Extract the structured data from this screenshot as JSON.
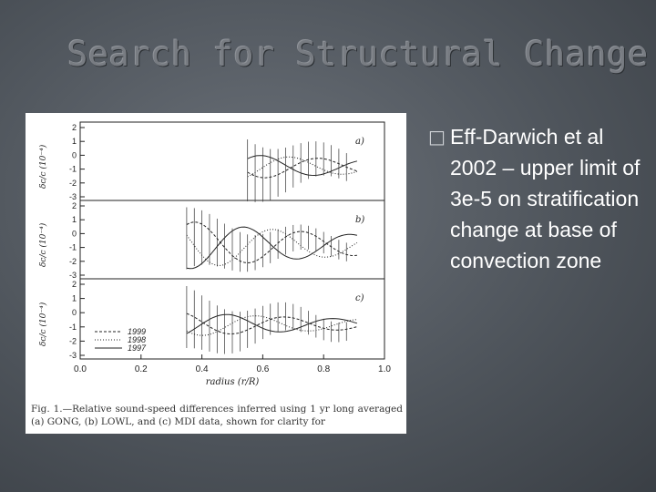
{
  "slide": {
    "title": "Search for Structural Change",
    "bullet_glyph": "",
    "bullet_text": "Eff-Darwich et al 2002 – upper limit of 3e-5 on stratification change at base of convection zone"
  },
  "figure": {
    "y_ticks": [
      "2",
      "1",
      "0",
      "-1",
      "-2",
      "-3"
    ],
    "x_ticks": [
      "0.0",
      "0.2",
      "0.4",
      "0.6",
      "0.8",
      "1.0"
    ],
    "x_label": "radius (r/R)",
    "y_label": "δc/c   (10⁻⁴)",
    "panel_labels": [
      "a)",
      "b)",
      "c)"
    ],
    "legend": [
      "1999",
      "1998",
      "1997"
    ],
    "caption": "Fig. 1.—Relative sound-speed differences inferred using 1 yr long averaged (a) GONG, (b) LOWL, and (c) MDI data, shown for clarity for"
  }
}
